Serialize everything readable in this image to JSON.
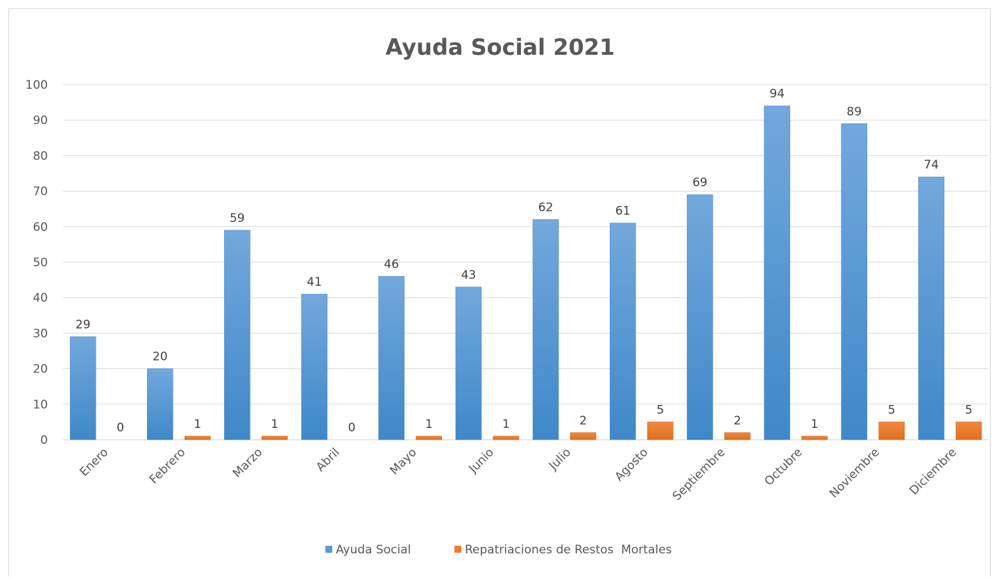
{
  "chart_data": {
    "type": "bar",
    "title": "Ayuda Social 2021",
    "xlabel": "",
    "ylabel": "",
    "ylim": [
      0,
      100
    ],
    "yticks": [
      0,
      10,
      20,
      30,
      40,
      50,
      60,
      70,
      80,
      90,
      100
    ],
    "grid": true,
    "legend_position": "bottom",
    "categories": [
      "Enero",
      "Febrero",
      "Marzo",
      "Abril",
      "Mayo",
      "Junio",
      "Julio",
      "Agosto",
      "Septiembre",
      "Octubre",
      "Noviembre",
      "Diciembre"
    ],
    "series": [
      {
        "name": "Ayuda Social",
        "color": "#5b9bd5",
        "values": [
          29,
          20,
          59,
          41,
          46,
          43,
          62,
          61,
          69,
          94,
          89,
          74
        ]
      },
      {
        "name": "Repatriaciones de Restos  Mortales",
        "color": "#ed7d31",
        "values": [
          0,
          1,
          1,
          0,
          1,
          1,
          2,
          5,
          2,
          1,
          5,
          5
        ]
      }
    ]
  }
}
